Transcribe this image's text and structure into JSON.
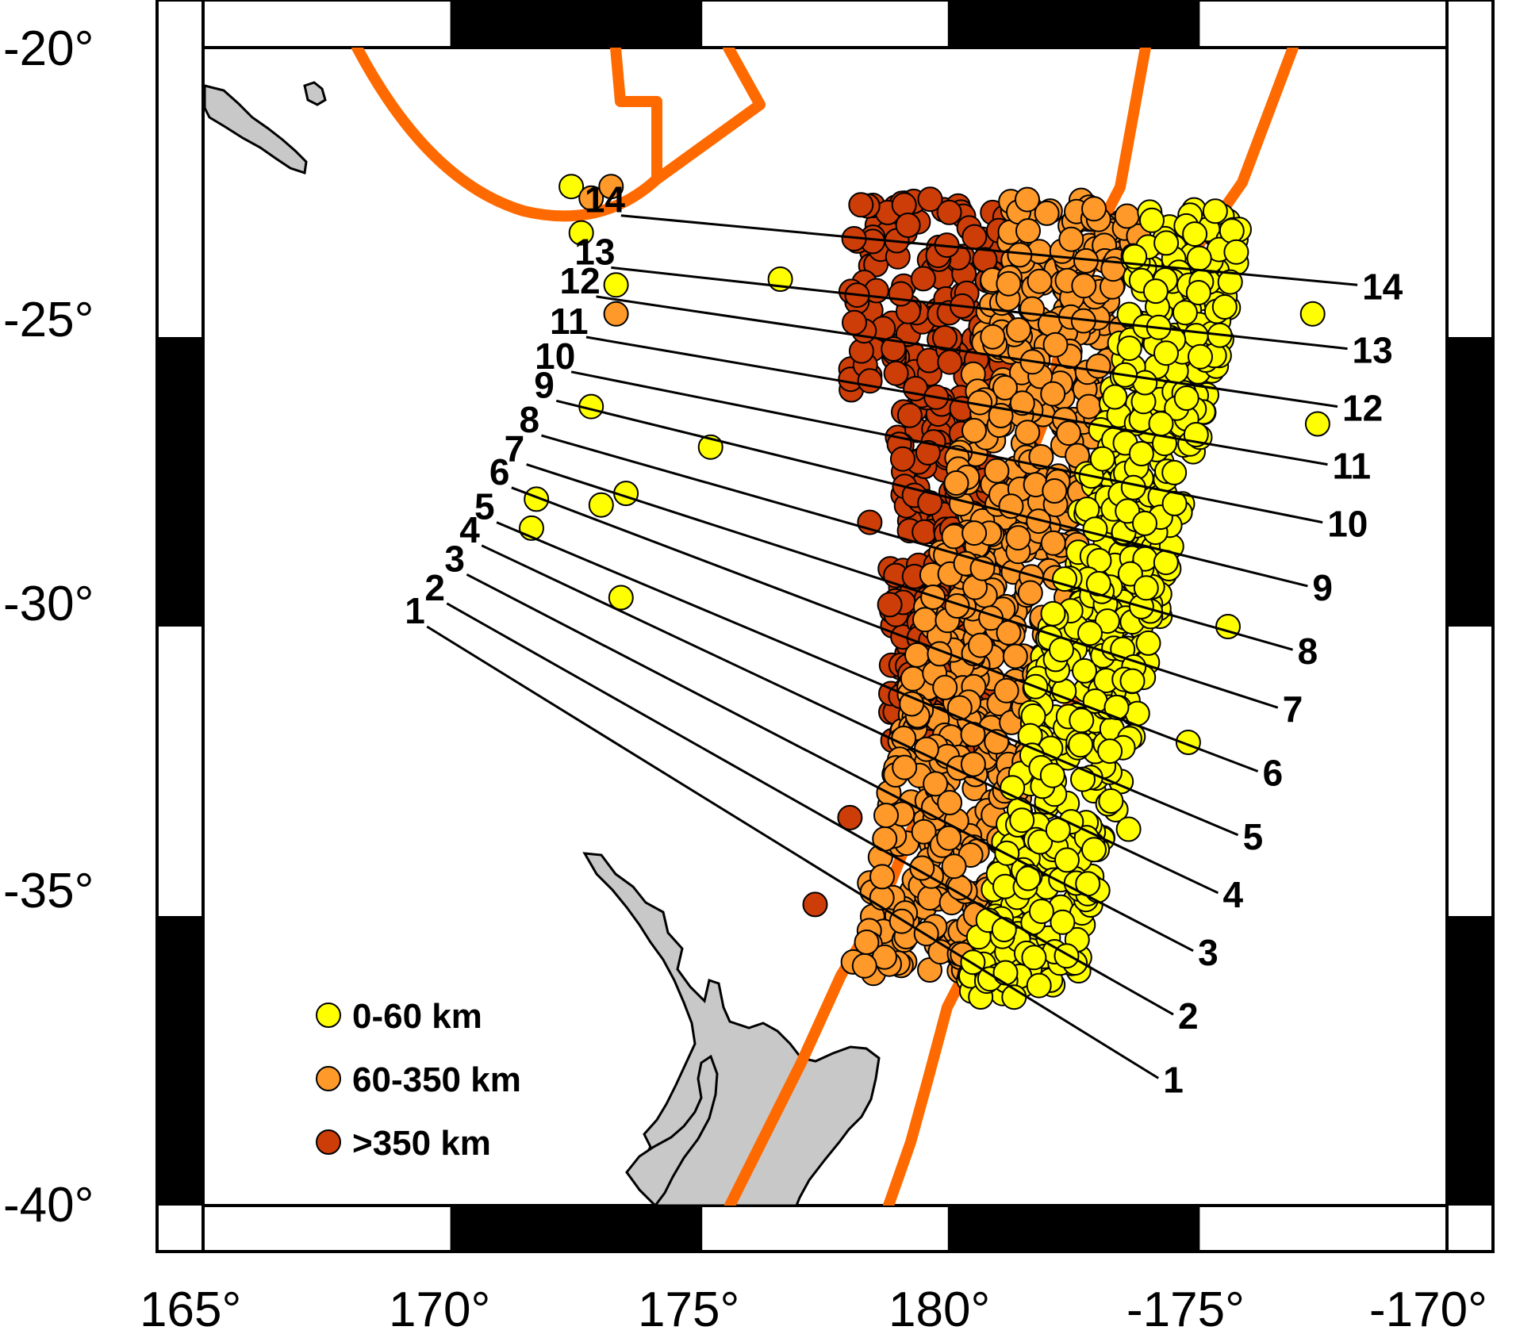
{
  "map": {
    "x_ticks": [
      "165°",
      "170°",
      "175°",
      "180°",
      "-175°",
      "-170°"
    ],
    "y_ticks": [
      "-20°",
      "-25°",
      "-30°",
      "-35°",
      "-40°"
    ],
    "extent": {
      "lon_min": 165,
      "lon_max": 190,
      "lat_min": -40,
      "lat_max": -20
    },
    "colors": {
      "shallow": "#ffff00",
      "intermediate": "#ff9a2a",
      "deep": "#cc3d08",
      "plate_boundary": "#ff6a00",
      "land": "#c8c8c8",
      "frame": "#000000"
    }
  },
  "legend": {
    "items": [
      {
        "label": "0-60 km",
        "color": "#ffff00"
      },
      {
        "label": "60-350 km",
        "color": "#ff9a2a"
      },
      {
        "label": ">350 km",
        "color": "#cc3d08"
      }
    ]
  },
  "profiles": [
    {
      "id": "1",
      "start_label": "1",
      "end_label": "1",
      "start": [
        169.5,
        -30.0
      ],
      "end": [
        184.2,
        -37.8
      ]
    },
    {
      "id": "2",
      "start_label": "2",
      "end_label": "2",
      "start": [
        169.9,
        -29.6
      ],
      "end": [
        184.5,
        -36.7
      ]
    },
    {
      "id": "3",
      "start_label": "3",
      "end_label": "3",
      "start": [
        170.3,
        -29.1
      ],
      "end": [
        184.9,
        -35.6
      ]
    },
    {
      "id": "4",
      "start_label": "4",
      "end_label": "4",
      "start": [
        170.6,
        -28.6
      ],
      "end": [
        185.4,
        -34.6
      ]
    },
    {
      "id": "5",
      "start_label": "5",
      "end_label": "5",
      "start": [
        170.9,
        -28.2
      ],
      "end": [
        185.8,
        -33.6
      ]
    },
    {
      "id": "6",
      "start_label": "6",
      "end_label": "6",
      "start": [
        171.2,
        -27.6
      ],
      "end": [
        186.2,
        -32.5
      ]
    },
    {
      "id": "7",
      "start_label": "7",
      "end_label": "7",
      "start": [
        171.5,
        -27.2
      ],
      "end": [
        186.6,
        -31.4
      ]
    },
    {
      "id": "8",
      "start_label": "8",
      "end_label": "8",
      "start": [
        171.8,
        -26.7
      ],
      "end": [
        186.9,
        -30.4
      ]
    },
    {
      "id": "9",
      "start_label": "9",
      "end_label": "9",
      "start": [
        172.1,
        -26.1
      ],
      "end": [
        187.2,
        -29.3
      ]
    },
    {
      "id": "10",
      "start_label": "10",
      "end_label": "10",
      "start": [
        172.4,
        -25.6
      ],
      "end": [
        187.5,
        -28.2
      ]
    },
    {
      "id": "11",
      "start_label": "11",
      "end_label": "11",
      "start": [
        172.7,
        -25.0
      ],
      "end": [
        187.6,
        -27.2
      ]
    },
    {
      "id": "12",
      "start_label": "12",
      "end_label": "12",
      "start": [
        172.9,
        -24.3
      ],
      "end": [
        187.8,
        -26.2
      ]
    },
    {
      "id": "13",
      "start_label": "13",
      "end_label": "13",
      "start": [
        173.2,
        -23.8
      ],
      "end": [
        188.0,
        -25.2
      ]
    },
    {
      "id": "14",
      "start_label": "14",
      "end_label": "14",
      "start": [
        173.4,
        -22.9
      ],
      "end": [
        188.2,
        -24.1
      ]
    }
  ]
}
